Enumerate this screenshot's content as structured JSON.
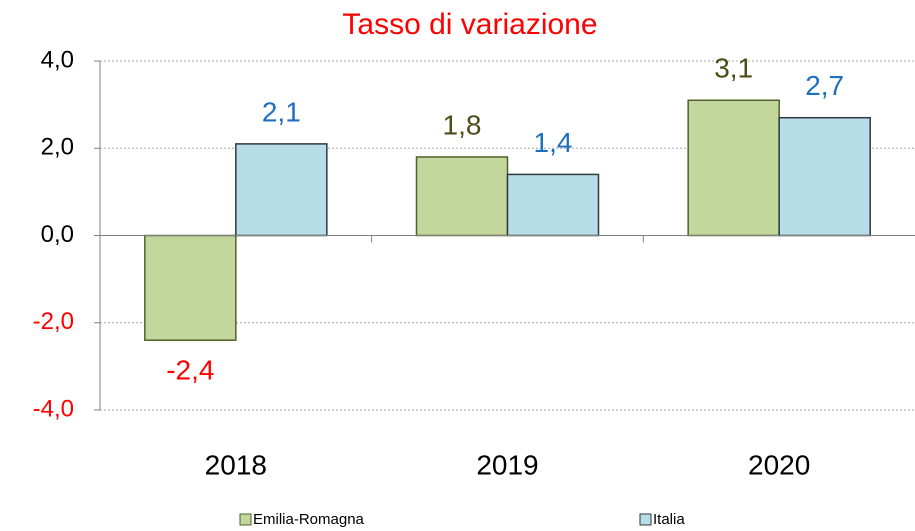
{
  "chart_data": {
    "type": "bar",
    "title": "Tasso di variazione",
    "categories": [
      "2018",
      "2019",
      "2020"
    ],
    "series": [
      {
        "name": "Emilia-Romagna",
        "color": "#c3d69b",
        "values": [
          -2.4,
          1.8,
          3.1
        ],
        "value_labels": [
          "-2,4",
          "1,8",
          "3,1"
        ]
      },
      {
        "name": "Italia",
        "color": "#b7dde8",
        "values": [
          2.1,
          1.4,
          2.7
        ],
        "value_labels": [
          "2,1",
          "1,4",
          "2,7"
        ]
      }
    ],
    "ylim": [
      -4,
      4
    ],
    "yticks": [
      {
        "value": -4,
        "label": "-4,0"
      },
      {
        "value": -2,
        "label": "-2,0"
      },
      {
        "value": 0,
        "label": "0,0"
      },
      {
        "value": 2,
        "label": "2,0"
      },
      {
        "value": 4,
        "label": "4,0"
      }
    ],
    "grid": true,
    "legend": "bottom"
  }
}
